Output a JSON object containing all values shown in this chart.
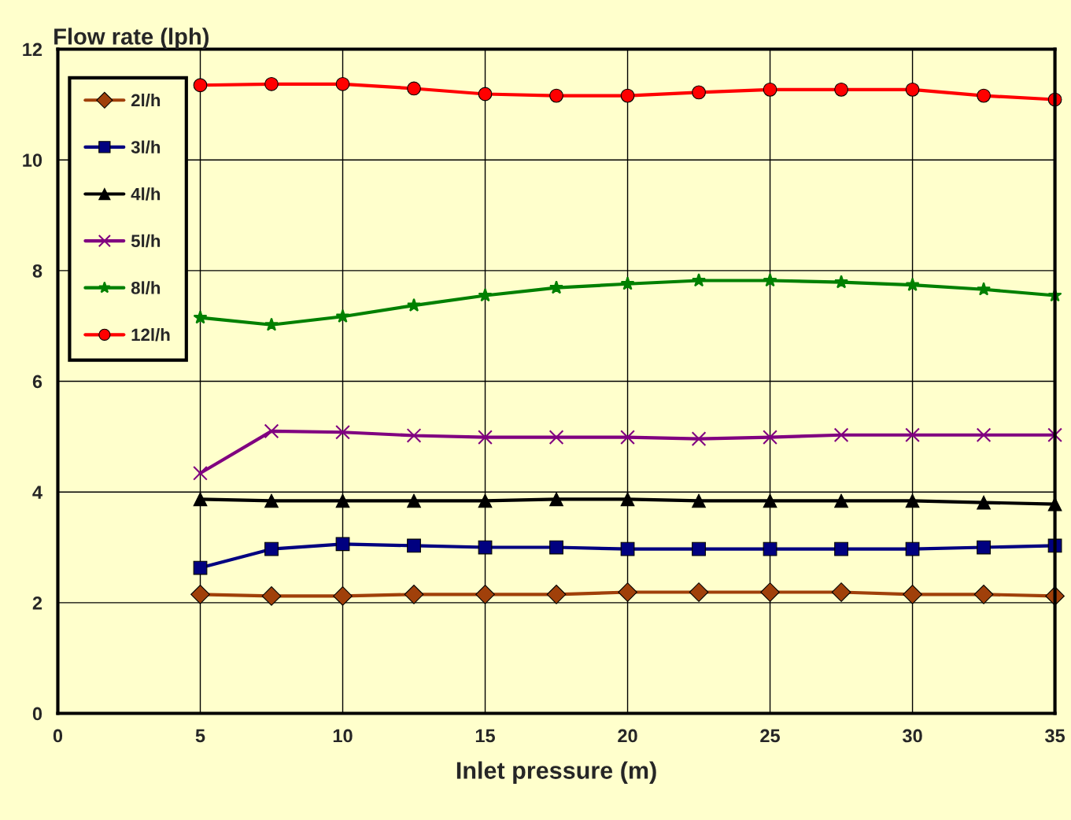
{
  "chart_data": {
    "type": "line",
    "xlabel": "Inlet pressure (m)",
    "ylabel": "Flow rate (lph)",
    "x": [
      5,
      7.5,
      10,
      12.5,
      15,
      17.5,
      20,
      22.5,
      25,
      27.5,
      30,
      32.5,
      35
    ],
    "series": [
      {
        "name": "2l/h",
        "color": "#a0400a",
        "marker": "diamond",
        "values": [
          2.15,
          2.12,
          2.12,
          2.15,
          2.15,
          2.15,
          2.19,
          2.19,
          2.19,
          2.19,
          2.15,
          2.15,
          2.12
        ]
      },
      {
        "name": "3l/h",
        "color": "#000080",
        "marker": "square",
        "values": [
          2.63,
          2.97,
          3.06,
          3.03,
          3.0,
          3.0,
          2.97,
          2.97,
          2.97,
          2.97,
          2.97,
          3.0,
          3.03
        ]
      },
      {
        "name": "4l/h",
        "color": "#000000",
        "marker": "triangle",
        "values": [
          3.87,
          3.84,
          3.84,
          3.84,
          3.84,
          3.87,
          3.87,
          3.84,
          3.84,
          3.84,
          3.84,
          3.81,
          3.78
        ]
      },
      {
        "name": "5l/h",
        "color": "#800080",
        "marker": "cross",
        "values": [
          4.34,
          5.1,
          5.08,
          5.02,
          4.99,
          4.99,
          4.99,
          4.96,
          4.99,
          5.03,
          5.03,
          5.03,
          5.03
        ]
      },
      {
        "name": "8l/h",
        "color": "#008000",
        "marker": "star",
        "values": [
          7.15,
          7.02,
          7.17,
          7.37,
          7.55,
          7.69,
          7.76,
          7.82,
          7.82,
          7.79,
          7.74,
          7.66,
          7.55
        ]
      },
      {
        "name": "12l/h",
        "color": "#ff0000",
        "marker": "circle",
        "values": [
          11.35,
          11.37,
          11.37,
          11.29,
          11.19,
          11.16,
          11.16,
          11.22,
          11.27,
          11.27,
          11.27,
          11.16,
          11.09
        ]
      }
    ],
    "xlim": [
      0,
      35
    ],
    "xticks": [
      0,
      5,
      10,
      15,
      20,
      25,
      30,
      35
    ],
    "ylim": [
      0,
      12
    ],
    "yticks": [
      0,
      2,
      4,
      6,
      8,
      10,
      12
    ],
    "grid": true,
    "legend": "top left",
    "line_style": "solid"
  }
}
